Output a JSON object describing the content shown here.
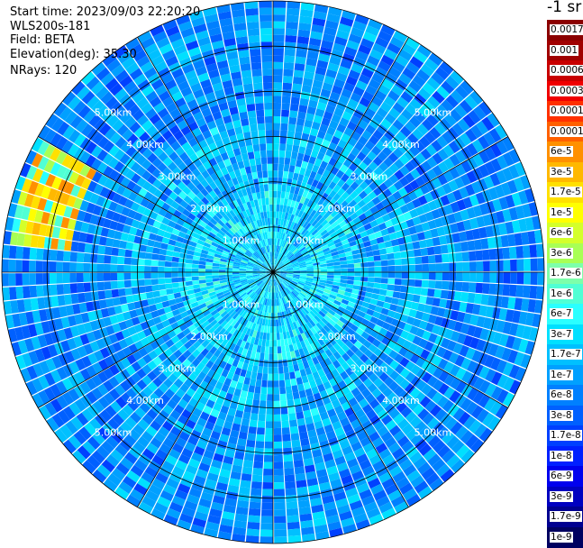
{
  "header": {
    "start_time": "Start time: 2023/09/03 22:20:20",
    "instrument": "WLS200s-181",
    "field": "Field: BETA",
    "elevation": "Elevation(deg): 35.30",
    "nrays": "NRays: 120"
  },
  "colorbar": {
    "unit": "-1 sr",
    "labels": [
      "0.0017",
      "0.001",
      "0.0006",
      "0.0003",
      "0.00017",
      "0.0001",
      "6e-5",
      "3e-5",
      "1.7e-5",
      "1e-5",
      "6e-6",
      "3e-6",
      "1.7e-6",
      "1e-6",
      "6e-7",
      "3e-7",
      "1.7e-7",
      "1e-7",
      "6e-8",
      "3e-8",
      "1.7e-8",
      "1e-8",
      "6e-9",
      "3e-9",
      "1.7e-9",
      "1e-9"
    ],
    "colors": [
      "#8b0000",
      "#a00000",
      "#c80000",
      "#f00000",
      "#ff3000",
      "#ff6000",
      "#ff9000",
      "#ffb800",
      "#ffe000",
      "#ffff00",
      "#d4ff2a",
      "#a8ff55",
      "#7dffaa",
      "#50ffd4",
      "#2affff",
      "#00e0ff",
      "#00c0ff",
      "#00a0ff",
      "#0080ff",
      "#0060ff",
      "#0040ff",
      "#0020ff",
      "#0000ee",
      "#0000c0",
      "#000090",
      "#000060"
    ]
  },
  "chart_data": {
    "type": "heatmap",
    "projection": "polar (PPI scan)",
    "field": "BETA",
    "elevation_deg": 35.3,
    "nrays": 120,
    "max_range_km": 6.0,
    "range_rings_km": [
      1.0,
      2.0,
      3.0,
      4.0,
      5.0,
      6.0
    ],
    "ring_labels": [
      "1.00km",
      "2.00km",
      "3.00km",
      "4.00km",
      "5.00km"
    ],
    "spoke_angles_deg": [
      0,
      30,
      60,
      90,
      120,
      150,
      180,
      210,
      240,
      270,
      300,
      330
    ],
    "typical_value_range": [
      "1e-8",
      "3e-7"
    ],
    "features": [
      {
        "description": "high backscatter band (3e-5 to 1e-4)",
        "azimuth_deg": [
          275,
          300
        ],
        "range_km": [
          4.5,
          5.9
        ]
      }
    ]
  }
}
